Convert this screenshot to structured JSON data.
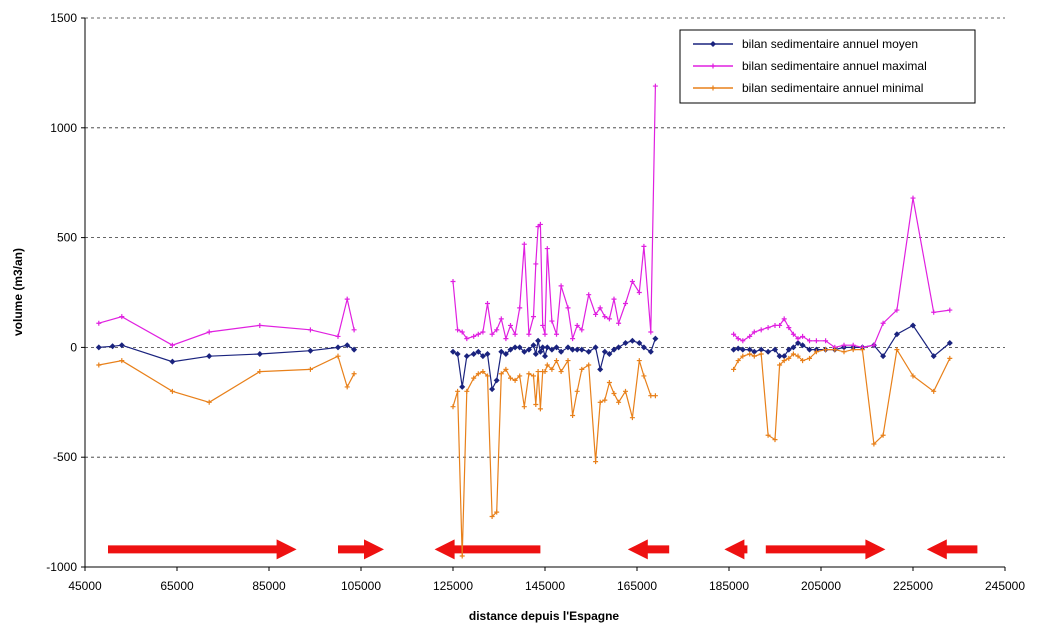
{
  "chart_data": {
    "type": "line",
    "xlabel": "distance depuis l'Espagne",
    "ylabel": "volume (m3/an)",
    "xlim": [
      45000,
      245000
    ],
    "ylim": [
      -1000,
      1500
    ],
    "x_ticks": [
      "45000",
      "65000",
      "85000",
      "105000",
      "125000",
      "145000",
      "165000",
      "185000",
      "205000",
      "225000",
      "245000"
    ],
    "y_ticks": [
      "1500",
      "1000",
      "500",
      "0",
      "-500",
      "-1000"
    ],
    "grid": "horizontal dashed",
    "legend_position": "top-right",
    "series": [
      {
        "name": "bilan sedimentaire annuel moyen",
        "color": "#1a237e",
        "marker": "diamond",
        "segments": [
          [
            [
              48000,
              0
            ],
            [
              51000,
              5
            ],
            [
              53000,
              10
            ],
            [
              64000,
              -65
            ],
            [
              72000,
              -40
            ],
            [
              83000,
              -30
            ],
            [
              94000,
              -15
            ],
            [
              100000,
              0
            ],
            [
              102000,
              10
            ],
            [
              103500,
              -10
            ]
          ],
          [
            [
              125000,
              -20
            ],
            [
              126000,
              -30
            ],
            [
              127000,
              -180
            ],
            [
              128000,
              -40
            ],
            [
              129500,
              -30
            ],
            [
              130500,
              -20
            ],
            [
              131500,
              -40
            ],
            [
              132500,
              -30
            ],
            [
              133500,
              -190
            ],
            [
              134500,
              -150
            ],
            [
              135500,
              -20
            ],
            [
              136500,
              -30
            ],
            [
              137500,
              -10
            ],
            [
              138500,
              0
            ],
            [
              139500,
              0
            ],
            [
              140500,
              -20
            ],
            [
              141500,
              -10
            ],
            [
              142500,
              10
            ],
            [
              143000,
              -30
            ],
            [
              143500,
              30
            ],
            [
              144000,
              -20
            ],
            [
              144500,
              0
            ],
            [
              145000,
              -40
            ],
            [
              145500,
              0
            ],
            [
              146500,
              -10
            ],
            [
              147500,
              0
            ],
            [
              148500,
              -20
            ],
            [
              150000,
              0
            ],
            [
              151000,
              -10
            ],
            [
              152000,
              -10
            ],
            [
              153000,
              -10
            ],
            [
              154500,
              -20
            ],
            [
              156000,
              0
            ],
            [
              157000,
              -100
            ],
            [
              158000,
              -20
            ],
            [
              159000,
              -30
            ],
            [
              160000,
              -10
            ],
            [
              161000,
              0
            ],
            [
              162500,
              20
            ],
            [
              164000,
              30
            ],
            [
              165500,
              20
            ],
            [
              166500,
              0
            ],
            [
              168000,
              -20
            ],
            [
              169000,
              40
            ]
          ],
          [
            [
              186000,
              -10
            ],
            [
              187000,
              -5
            ],
            [
              188000,
              -10
            ],
            [
              189500,
              -10
            ],
            [
              190500,
              -20
            ],
            [
              192000,
              -10
            ],
            [
              193500,
              -20
            ],
            [
              195000,
              -10
            ],
            [
              196000,
              -40
            ],
            [
              197000,
              -40
            ],
            [
              198000,
              -10
            ],
            [
              199000,
              0
            ],
            [
              200000,
              20
            ],
            [
              201000,
              10
            ],
            [
              202500,
              -10
            ],
            [
              204000,
              -10
            ],
            [
              206000,
              -10
            ],
            [
              208000,
              -10
            ],
            [
              210000,
              0
            ],
            [
              212000,
              0
            ],
            [
              214000,
              0
            ],
            [
              216500,
              10
            ],
            [
              218500,
              -40
            ],
            [
              221500,
              60
            ],
            [
              225000,
              100
            ],
            [
              229500,
              -40
            ],
            [
              233000,
              20
            ]
          ]
        ]
      },
      {
        "name": "bilan sedimentaire annuel maximal",
        "color": "#e020e0",
        "marker": "plus",
        "segments": [
          [
            [
              48000,
              110
            ],
            [
              53000,
              140
            ],
            [
              64000,
              10
            ],
            [
              72000,
              70
            ],
            [
              83000,
              100
            ],
            [
              94000,
              80
            ],
            [
              100000,
              50
            ],
            [
              102000,
              220
            ],
            [
              103500,
              80
            ]
          ],
          [
            [
              125000,
              300
            ],
            [
              126000,
              80
            ],
            [
              127000,
              70
            ],
            [
              128000,
              40
            ],
            [
              129500,
              50
            ],
            [
              130500,
              60
            ],
            [
              131500,
              70
            ],
            [
              132500,
              200
            ],
            [
              133500,
              60
            ],
            [
              134500,
              80
            ],
            [
              135500,
              130
            ],
            [
              136500,
              40
            ],
            [
              137500,
              100
            ],
            [
              138500,
              60
            ],
            [
              139500,
              180
            ],
            [
              140500,
              470
            ],
            [
              141500,
              60
            ],
            [
              142500,
              140
            ],
            [
              143000,
              380
            ],
            [
              143500,
              550
            ],
            [
              144000,
              560
            ],
            [
              144500,
              100
            ],
            [
              145000,
              60
            ],
            [
              145500,
              450
            ],
            [
              146500,
              120
            ],
            [
              147500,
              60
            ],
            [
              148500,
              280
            ],
            [
              150000,
              180
            ],
            [
              151000,
              40
            ],
            [
              152000,
              100
            ],
            [
              153000,
              80
            ],
            [
              154500,
              240
            ],
            [
              156000,
              150
            ],
            [
              157000,
              180
            ],
            [
              158000,
              140
            ],
            [
              159000,
              130
            ],
            [
              160000,
              220
            ],
            [
              161000,
              110
            ],
            [
              162500,
              200
            ],
            [
              164000,
              300
            ],
            [
              165500,
              250
            ],
            [
              166500,
              460
            ],
            [
              168000,
              70
            ],
            [
              169000,
              1190
            ]
          ],
          [
            [
              186000,
              60
            ],
            [
              187000,
              40
            ],
            [
              188000,
              30
            ],
            [
              189500,
              50
            ],
            [
              190500,
              70
            ],
            [
              192000,
              80
            ],
            [
              193500,
              90
            ],
            [
              195000,
              100
            ],
            [
              196000,
              100
            ],
            [
              197000,
              130
            ],
            [
              198000,
              90
            ],
            [
              199000,
              60
            ],
            [
              200000,
              40
            ],
            [
              201000,
              50
            ],
            [
              202500,
              30
            ],
            [
              204000,
              30
            ],
            [
              206000,
              30
            ],
            [
              208000,
              0
            ],
            [
              210000,
              10
            ],
            [
              212000,
              10
            ],
            [
              214000,
              0
            ],
            [
              216500,
              10
            ],
            [
              218500,
              110
            ],
            [
              221500,
              170
            ],
            [
              225000,
              680
            ],
            [
              229500,
              160
            ],
            [
              233000,
              170
            ]
          ]
        ]
      },
      {
        "name": "bilan sedimentaire annuel minimal",
        "color": "#e8801a",
        "marker": "plus",
        "segments": [
          [
            [
              48000,
              -80
            ],
            [
              53000,
              -60
            ],
            [
              64000,
              -200
            ],
            [
              72000,
              -250
            ],
            [
              83000,
              -110
            ],
            [
              94000,
              -100
            ],
            [
              100000,
              -40
            ],
            [
              102000,
              -180
            ],
            [
              103500,
              -120
            ]
          ],
          [
            [
              125000,
              -270
            ],
            [
              126000,
              -200
            ],
            [
              127000,
              -950
            ],
            [
              128000,
              -200
            ],
            [
              129500,
              -140
            ],
            [
              130500,
              -120
            ],
            [
              131500,
              -110
            ],
            [
              132500,
              -130
            ],
            [
              133500,
              -770
            ],
            [
              134500,
              -750
            ],
            [
              135500,
              -120
            ],
            [
              136500,
              -100
            ],
            [
              137500,
              -140
            ],
            [
              138500,
              -150
            ],
            [
              139500,
              -130
            ],
            [
              140500,
              -270
            ],
            [
              141500,
              -120
            ],
            [
              142500,
              -130
            ],
            [
              143000,
              -260
            ],
            [
              143500,
              -110
            ],
            [
              144000,
              -280
            ],
            [
              144500,
              -110
            ],
            [
              145000,
              -110
            ],
            [
              145500,
              -80
            ],
            [
              146500,
              -100
            ],
            [
              147500,
              -60
            ],
            [
              148500,
              -110
            ],
            [
              150000,
              -60
            ],
            [
              151000,
              -310
            ],
            [
              152000,
              -200
            ],
            [
              153000,
              -100
            ],
            [
              154500,
              -80
            ],
            [
              156000,
              -520
            ],
            [
              157000,
              -250
            ],
            [
              158000,
              -240
            ],
            [
              159000,
              -160
            ],
            [
              160000,
              -210
            ],
            [
              161000,
              -250
            ],
            [
              162500,
              -200
            ],
            [
              164000,
              -320
            ],
            [
              165500,
              -60
            ],
            [
              166500,
              -130
            ],
            [
              168000,
              -220
            ],
            [
              169000,
              -220
            ]
          ],
          [
            [
              186000,
              -100
            ],
            [
              187000,
              -60
            ],
            [
              188000,
              -40
            ],
            [
              189500,
              -30
            ],
            [
              190500,
              -40
            ],
            [
              192000,
              -30
            ],
            [
              193500,
              -400
            ],
            [
              195000,
              -420
            ],
            [
              196000,
              -80
            ],
            [
              197000,
              -60
            ],
            [
              198000,
              -50
            ],
            [
              199000,
              -30
            ],
            [
              200000,
              -40
            ],
            [
              201000,
              -60
            ],
            [
              202500,
              -50
            ],
            [
              204000,
              -20
            ],
            [
              206000,
              -10
            ],
            [
              208000,
              -10
            ],
            [
              210000,
              -20
            ],
            [
              212000,
              -10
            ],
            [
              214000,
              -10
            ],
            [
              216500,
              -440
            ],
            [
              218500,
              -400
            ],
            [
              221500,
              -10
            ],
            [
              225000,
              -130
            ],
            [
              229500,
              -200
            ],
            [
              233000,
              -50
            ]
          ]
        ]
      }
    ],
    "arrows": [
      {
        "from": 50000,
        "to": 91000,
        "direction": "right"
      },
      {
        "from": 100000,
        "to": 110000,
        "direction": "right"
      },
      {
        "from": 144000,
        "to": 121000,
        "direction": "left"
      },
      {
        "from": 172000,
        "to": 163000,
        "direction": "left"
      },
      {
        "from": 189000,
        "to": 184000,
        "direction": "left"
      },
      {
        "from": 193000,
        "to": 219000,
        "direction": "right"
      },
      {
        "from": 239000,
        "to": 228000,
        "direction": "left"
      }
    ],
    "arrow_color": "#ee1111",
    "arrow_level": -920
  }
}
